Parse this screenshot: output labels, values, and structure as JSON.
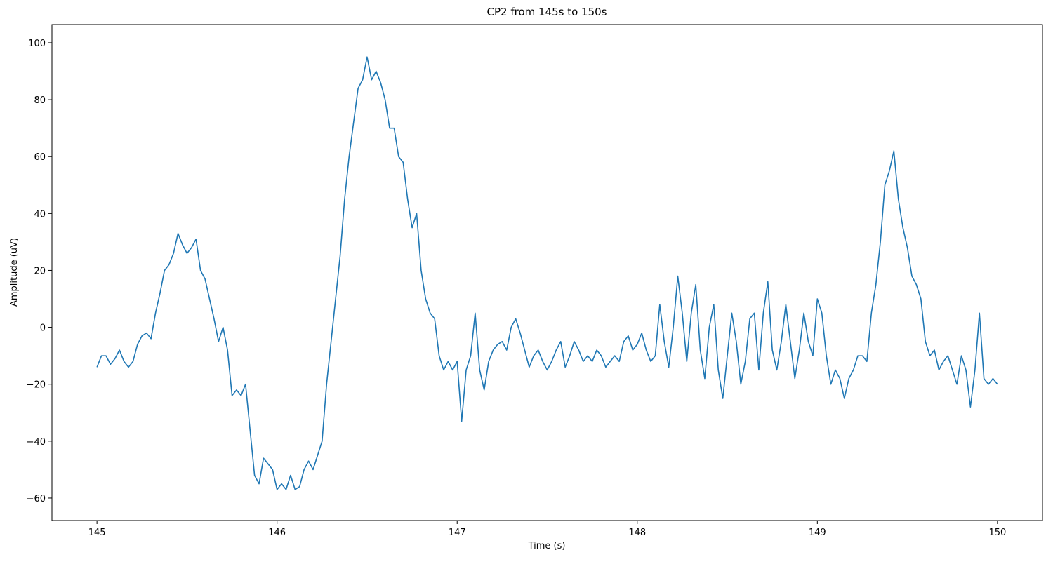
{
  "chart_data": {
    "type": "line",
    "title": "CP2 from 145s to 150s",
    "x_label": "Time (s)",
    "y_label": "Amplitude (uV)",
    "color": "#1f77b4",
    "xlim": [
      144.75,
      150.25
    ],
    "ylim": [
      -67.9,
      106.4
    ],
    "xticks": [
      145,
      146,
      147,
      148,
      149,
      150
    ],
    "yticks": [
      {
        "value": -60,
        "label": "−60"
      },
      {
        "value": -40,
        "label": "−40"
      },
      {
        "value": -20,
        "label": "−20"
      },
      0,
      20,
      40,
      60,
      80,
      100
    ],
    "x": [
      145,
      145.025,
      145.05,
      145.075,
      145.1,
      145.125,
      145.15,
      145.175,
      145.2,
      145.225,
      145.25,
      145.275,
      145.3,
      145.325,
      145.35,
      145.375,
      145.4,
      145.425,
      145.45,
      145.475,
      145.5,
      145.525,
      145.55,
      145.575,
      145.6,
      145.625,
      145.65,
      145.675,
      145.7,
      145.725,
      145.75,
      145.775,
      145.8,
      145.825,
      145.85,
      145.875,
      145.9,
      145.925,
      145.95,
      145.975,
      146,
      146.025,
      146.05,
      146.075,
      146.1,
      146.125,
      146.15,
      146.175,
      146.2,
      146.225,
      146.25,
      146.275,
      146.3,
      146.325,
      146.35,
      146.375,
      146.4,
      146.425,
      146.45,
      146.475,
      146.5,
      146.525,
      146.55,
      146.575,
      146.6,
      146.625,
      146.65,
      146.675,
      146.7,
      146.725,
      146.75,
      146.775,
      146.8,
      146.825,
      146.85,
      146.875,
      146.9,
      146.925,
      146.95,
      146.975,
      147,
      147.025,
      147.05,
      147.075,
      147.1,
      147.125,
      147.15,
      147.175,
      147.2,
      147.225,
      147.25,
      147.275,
      147.3,
      147.325,
      147.35,
      147.375,
      147.4,
      147.425,
      147.45,
      147.475,
      147.5,
      147.525,
      147.55,
      147.575,
      147.6,
      147.625,
      147.65,
      147.675,
      147.7,
      147.725,
      147.75,
      147.775,
      147.8,
      147.825,
      147.85,
      147.875,
      147.9,
      147.925,
      147.95,
      147.975,
      148,
      148.025,
      148.05,
      148.075,
      148.1,
      148.125,
      148.15,
      148.175,
      148.2,
      148.225,
      148.25,
      148.275,
      148.3,
      148.325,
      148.35,
      148.375,
      148.4,
      148.425,
      148.45,
      148.475,
      148.5,
      148.525,
      148.55,
      148.575,
      148.6,
      148.625,
      148.65,
      148.675,
      148.7,
      148.725,
      148.75,
      148.775,
      148.8,
      148.825,
      148.85,
      148.875,
      148.9,
      148.925,
      148.95,
      148.975,
      149,
      149.025,
      149.05,
      149.075,
      149.1,
      149.125,
      149.15,
      149.175,
      149.2,
      149.225,
      149.25,
      149.275,
      149.3,
      149.325,
      149.35,
      149.375,
      149.4,
      149.425,
      149.45,
      149.475,
      149.5,
      149.525,
      149.55,
      149.575,
      149.6,
      149.625,
      149.65,
      149.675,
      149.7,
      149.725,
      149.75,
      149.775,
      149.8,
      149.825,
      149.85,
      149.875,
      149.9,
      149.925,
      149.95,
      149.975,
      150
    ],
    "values": [
      -14,
      -10,
      -10,
      -13,
      -11,
      -8,
      -12,
      -14,
      -12,
      -6,
      -3,
      -2,
      -4,
      5,
      12,
      20,
      22,
      26,
      33,
      29,
      26,
      28,
      31,
      20,
      17,
      10,
      3,
      -5,
      0,
      -8,
      -24,
      -22,
      -24,
      -20,
      -36,
      -52,
      -55,
      -46,
      -48,
      -50,
      -57,
      -55,
      -57,
      -52,
      -57,
      -56,
      -50,
      -47,
      -50,
      -45,
      -40,
      -20,
      -5,
      10,
      25,
      45,
      60,
      72,
      84,
      87,
      95,
      87,
      90,
      86,
      80,
      70,
      70,
      60,
      58,
      45,
      35,
      40,
      20,
      10,
      5,
      3,
      -10,
      -15,
      -12,
      -15,
      -12,
      -33,
      -15,
      -10,
      5,
      -15,
      -22,
      -12,
      -8,
      -6,
      -5,
      -8,
      0,
      3,
      -2,
      -8,
      -14,
      -10,
      -8,
      -12,
      -15,
      -12,
      -8,
      -5,
      -14,
      -10,
      -5,
      -8,
      -12,
      -10,
      -12,
      -8,
      -10,
      -14,
      -12,
      -10,
      -12,
      -5,
      -3,
      -8,
      -6,
      -2,
      -8,
      -12,
      -10,
      8,
      -5,
      -14,
      0,
      18,
      5,
      -12,
      5,
      15,
      -8,
      -18,
      0,
      8,
      -15,
      -25,
      -10,
      5,
      -5,
      -20,
      -12,
      3,
      5,
      -15,
      5,
      16,
      -8,
      -15,
      -5,
      8,
      -5,
      -18,
      -8,
      5,
      -5,
      -10,
      10,
      5,
      -10,
      -20,
      -15,
      -18,
      -25,
      -18,
      -15,
      -10,
      -10,
      -12,
      5,
      15,
      30,
      50,
      55,
      62,
      45,
      35,
      28,
      18,
      15,
      10,
      -5,
      -10,
      -8,
      -15,
      -12,
      -10,
      -15,
      -20,
      -10,
      -15,
      -28,
      -15,
      5,
      -18,
      -20,
      -18,
      -20
    ]
  }
}
